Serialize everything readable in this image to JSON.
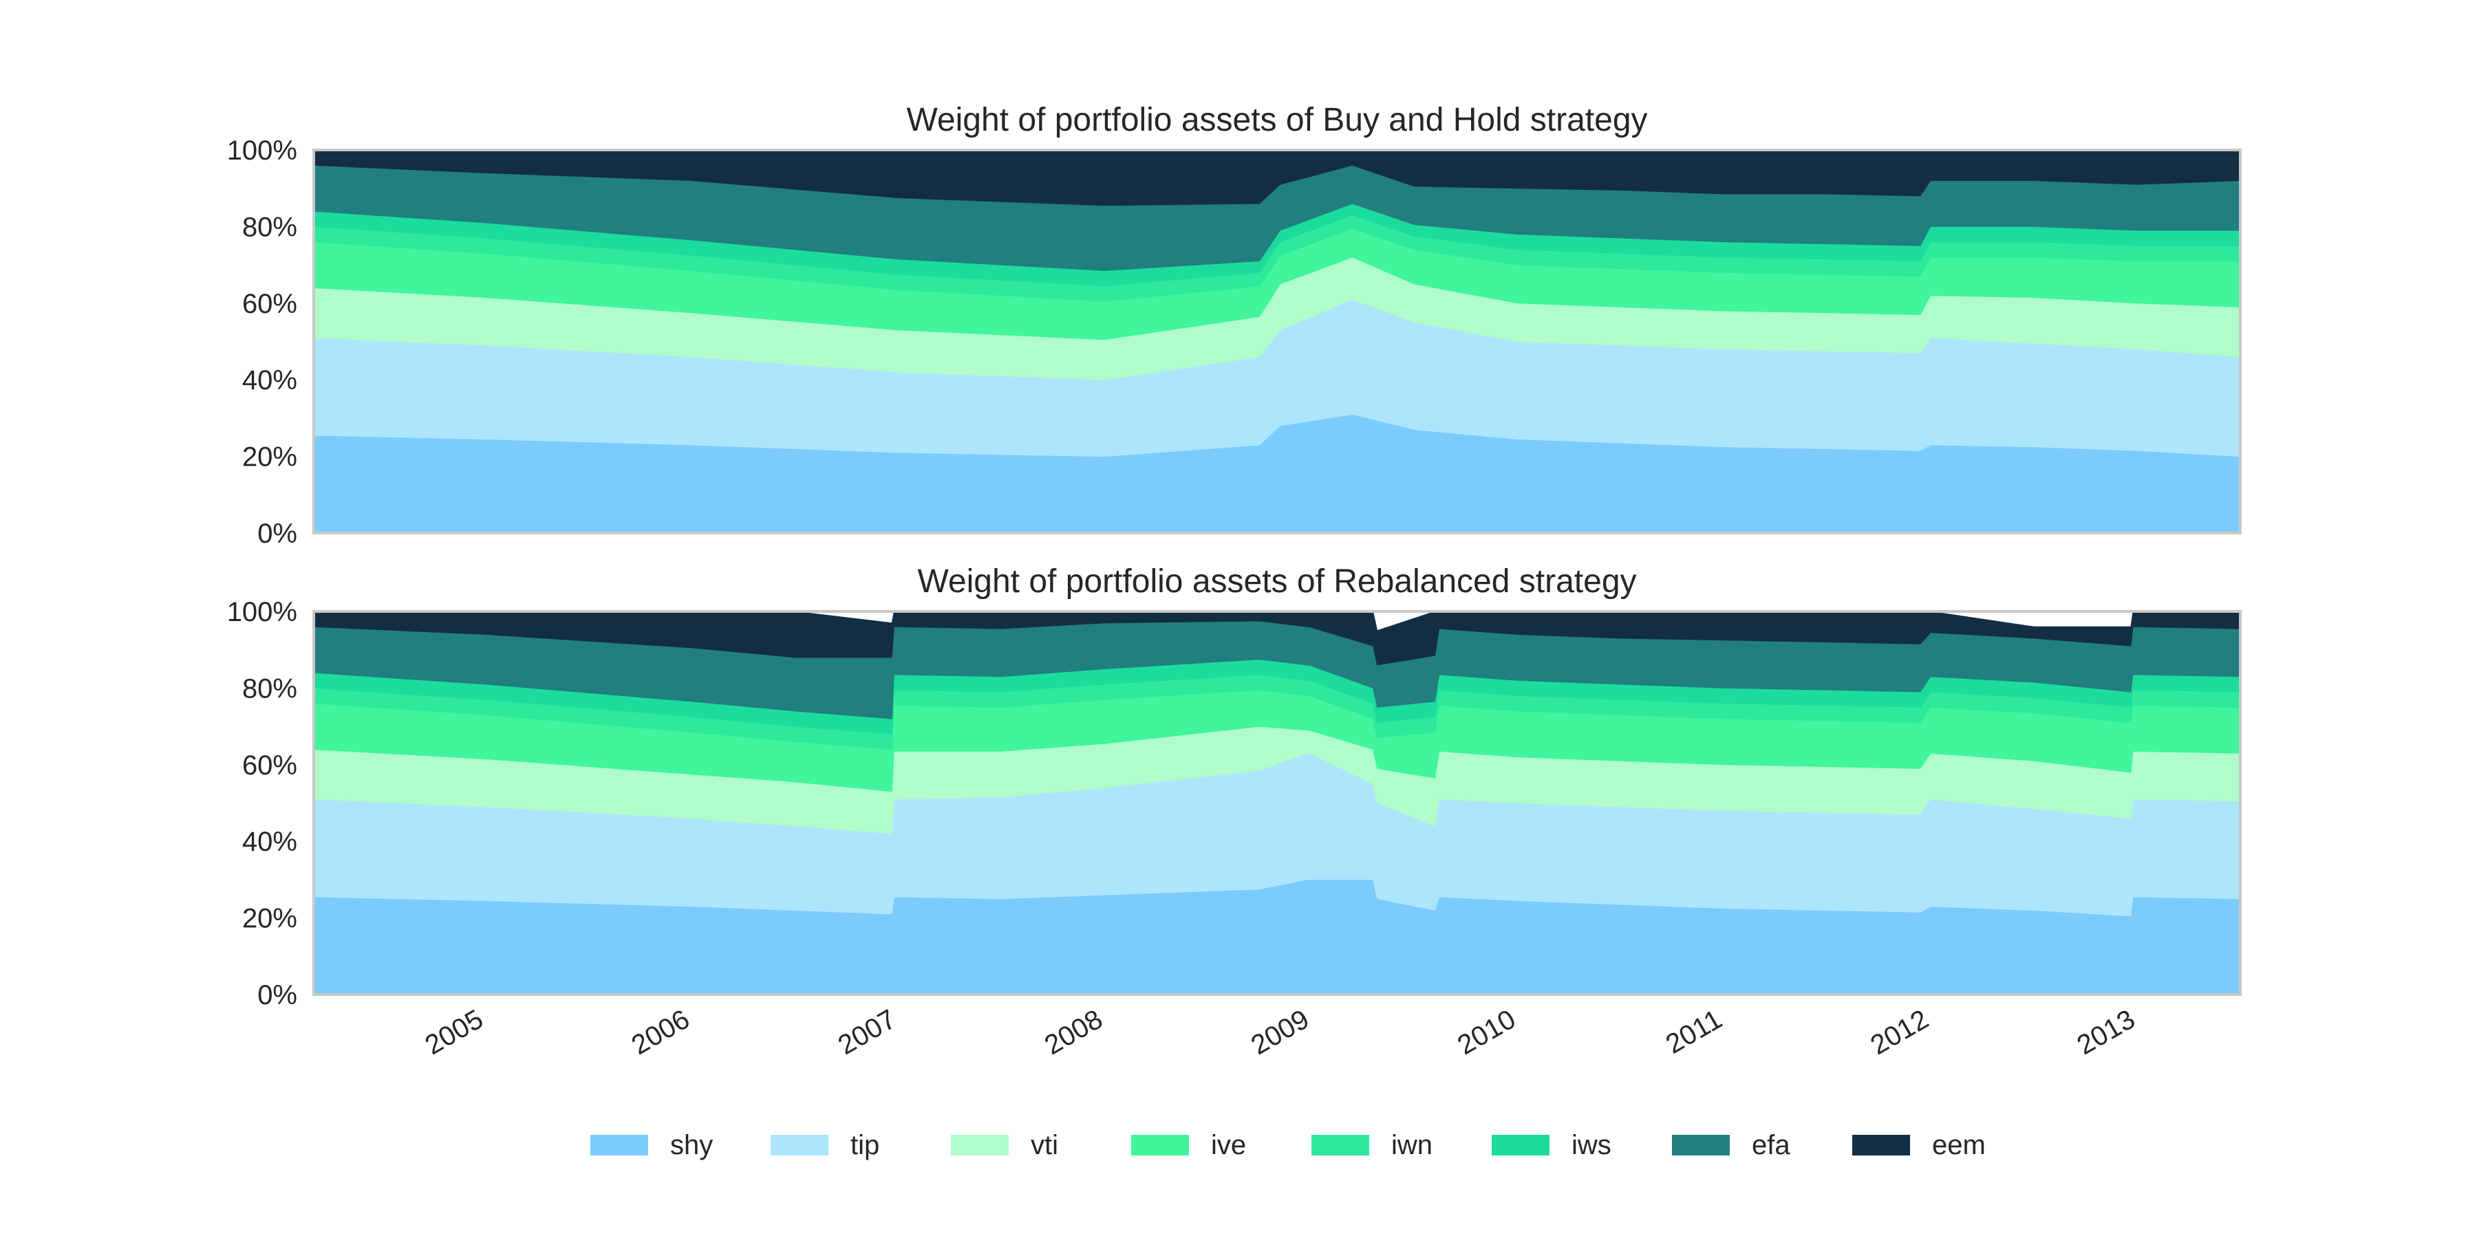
{
  "assets": [
    {
      "name": "shy",
      "color": "#7bcbfd"
    },
    {
      "name": "tip",
      "color": "#ade5fd"
    },
    {
      "name": "vti",
      "color": "#b0fcca"
    },
    {
      "name": "ive",
      "color": "#40f59b"
    },
    {
      "name": "iwn",
      "color": "#2ee99c"
    },
    {
      "name": "iws",
      "color": "#1bdc9c"
    },
    {
      "name": "efa",
      "color": "#217f7f"
    },
    {
      "name": "eem",
      "color": "#132e43"
    }
  ],
  "chart_data": [
    {
      "type": "area",
      "stacked": true,
      "title": "Weight of portfolio assets of Buy and Hold strategy",
      "xlabel": "",
      "ylabel": "",
      "ylim": [
        0,
        100
      ],
      "yticks": [
        "0%",
        "20%",
        "40%",
        "60%",
        "80%",
        "100%"
      ],
      "xticks": [
        "2005",
        "2006",
        "2007",
        "2008",
        "2009",
        "2010",
        "2011",
        "2012",
        "2013"
      ],
      "xlim": [
        2004.17,
        2013.5
      ],
      "grid": false,
      "legend": "bottom-center",
      "x": [
        2004.17,
        2005.0,
        2006.0,
        2007.0,
        2008.0,
        2008.75,
        2008.85,
        2009.2,
        2009.5,
        2010.0,
        2010.5,
        2011.0,
        2011.5,
        2011.95,
        2012.0,
        2012.5,
        2013.0,
        2013.5
      ],
      "series": [
        {
          "name": "shy",
          "values": [
            25.5,
            24.5,
            23,
            21,
            20,
            23,
            28,
            31,
            27,
            24.5,
            23.5,
            22.5,
            22,
            21.5,
            23,
            22.5,
            21.5,
            20
          ]
        },
        {
          "name": "tip",
          "values": [
            25.5,
            24.5,
            23,
            21,
            20,
            23,
            25,
            30,
            28,
            25.5,
            25.5,
            25.5,
            25.5,
            25.5,
            28,
            27,
            26.5,
            26
          ]
        },
        {
          "name": "vti",
          "values": [
            13,
            12.5,
            11.5,
            11,
            10.5,
            10.5,
            12,
            11,
            10,
            10,
            10,
            10,
            10,
            10,
            11,
            12,
            12,
            13
          ]
        },
        {
          "name": "ive",
          "values": [
            12,
            11.5,
            11,
            10.5,
            10,
            8,
            7.5,
            7.5,
            9,
            10,
            10,
            10,
            10,
            10,
            10,
            10.5,
            11,
            12
          ]
        },
        {
          "name": "iwn",
          "values": [
            4,
            4,
            4,
            4,
            4,
            3.5,
            3.5,
            3.5,
            3.5,
            4,
            4,
            4,
            4,
            4,
            4,
            4,
            4,
            4
          ]
        },
        {
          "name": "iws",
          "values": [
            4,
            4,
            4,
            4,
            4,
            3,
            3,
            3,
            3,
            4,
            4,
            4,
            4,
            4,
            4,
            4,
            4,
            4
          ]
        },
        {
          "name": "efa",
          "values": [
            12,
            13,
            15.5,
            16,
            17,
            15,
            12,
            10,
            10,
            12,
            12.5,
            12.5,
            13,
            13,
            12,
            12,
            12,
            13
          ]
        },
        {
          "name": "eem",
          "values": [
            4,
            6,
            8,
            12.5,
            14.5,
            14,
            9,
            4,
            9.5,
            10,
            10.5,
            11.6,
            11.5,
            12,
            8,
            8,
            9,
            8
          ]
        }
      ]
    },
    {
      "type": "area",
      "stacked": true,
      "title": "Weight of portfolio assets of Rebalanced strategy",
      "xlabel": "",
      "ylabel": "",
      "ylim": [
        0,
        100
      ],
      "yticks": [
        "0%",
        "20%",
        "40%",
        "60%",
        "80%",
        "100%"
      ],
      "xticks": [
        "2005",
        "2006",
        "2007",
        "2008",
        "2009",
        "2010",
        "2011",
        "2012",
        "2013"
      ],
      "xlim": [
        2004.17,
        2013.5
      ],
      "grid": false,
      "legend": "bottom-center",
      "x": [
        2004.17,
        2005.0,
        2006.0,
        2006.5,
        2006.97,
        2006.98,
        2007.5,
        2008.0,
        2008.75,
        2008.98,
        2008.99,
        2009.3,
        2009.32,
        2009.6,
        2009.62,
        2010.0,
        2010.5,
        2011.0,
        2011.5,
        2011.95,
        2012.0,
        2012.5,
        2012.97,
        2012.98,
        2013.5
      ],
      "series": [
        {
          "name": "shy",
          "values": [
            25.5,
            24.5,
            23,
            22,
            21,
            25.5,
            25,
            26,
            27.5,
            30,
            30,
            30,
            25,
            22,
            25.5,
            24.5,
            23.5,
            22.5,
            22,
            21.5,
            23,
            22,
            20.5,
            25.5,
            25
          ]
        },
        {
          "name": "tip",
          "values": [
            25.5,
            24.5,
            23,
            22,
            21,
            25.5,
            26.5,
            28,
            31,
            33,
            33,
            25,
            25,
            22,
            25.5,
            25.5,
            25.5,
            25.5,
            25.5,
            25.5,
            28,
            26.5,
            25.5,
            25.5,
            25.5
          ]
        },
        {
          "name": "vti",
          "values": [
            13,
            12.5,
            11.5,
            11.5,
            11,
            12.5,
            12,
            11.5,
            11.5,
            6,
            6,
            9,
            9,
            12.5,
            12.5,
            12,
            12,
            12,
            12,
            12,
            12,
            12.5,
            12,
            12.5,
            12.5
          ]
        },
        {
          "name": "ive",
          "values": [
            12,
            11.5,
            11,
            10.5,
            11,
            12,
            11.5,
            11.5,
            9.5,
            9,
            9,
            8,
            8,
            12,
            12,
            12,
            12,
            12,
            12,
            12,
            12,
            12.5,
            13,
            12,
            12
          ]
        },
        {
          "name": "iwn",
          "values": [
            4,
            4,
            4,
            4,
            4,
            4,
            4,
            4,
            4,
            4,
            4,
            4,
            4,
            4,
            4,
            4,
            4,
            4,
            4,
            4,
            4,
            4,
            4,
            4,
            4
          ]
        },
        {
          "name": "iws",
          "values": [
            4,
            4,
            4,
            4,
            4,
            4,
            4,
            4,
            4,
            4,
            4,
            4,
            4,
            4,
            4,
            4,
            4,
            4,
            4,
            4,
            4,
            4,
            4,
            4,
            4
          ]
        },
        {
          "name": "efa",
          "values": [
            12,
            13,
            14,
            14,
            16,
            12.5,
            12.5,
            12,
            10,
            10,
            10,
            11,
            11,
            12,
            12,
            12,
            12,
            12.5,
            12.5,
            12.5,
            11.5,
            11.5,
            12,
            12.5,
            12.5
          ]
        },
        {
          "name": "eem",
          "values": [
            4,
            6,
            9.5,
            12,
            9,
            4,
            4.5,
            3,
            2.5,
            4,
            4,
            9,
            9,
            11.5,
            4.5,
            6,
            7,
            7.5,
            8,
            8.5,
            5.5,
            3,
            5,
            4,
            4.5
          ]
        }
      ]
    }
  ]
}
